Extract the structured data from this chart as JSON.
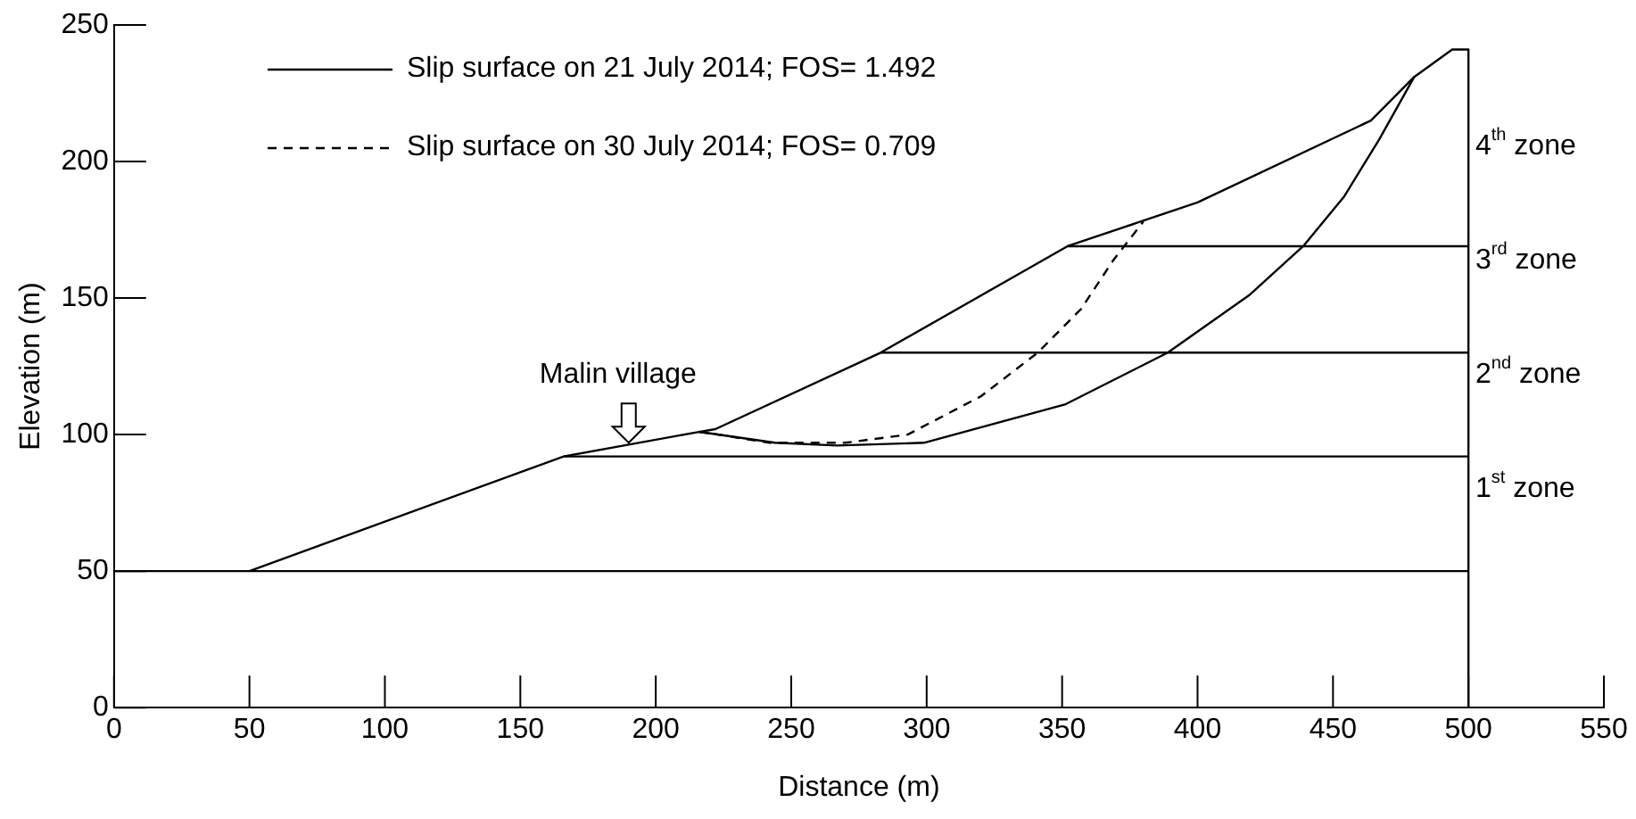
{
  "chart_data": {
    "type": "line",
    "xlabel": "Distance (m)",
    "ylabel": "Elevation (m)",
    "xlim": [
      0,
      550
    ],
    "xticks": [
      0,
      50,
      100,
      150,
      200,
      250,
      300,
      350,
      400,
      450,
      500,
      550
    ],
    "ylim": [
      0,
      250
    ],
    "yticks": [
      0,
      50,
      100,
      150,
      200,
      250
    ],
    "grid": false,
    "legend": "top left",
    "marker": "none",
    "series": [
      {
        "color": "#000000",
        "line_style": "solid",
        "x": [
          50,
          166,
          216,
          222,
          283,
          352,
          400,
          464,
          480,
          494,
          500,
          500
        ],
        "values": [
          50,
          92,
          101,
          102,
          130,
          169,
          185,
          215,
          231,
          241,
          241,
          0
        ]
      },
      {
        "name": "Slip surface on 21 July 2014; FOS= 1.492",
        "color": "#000000",
        "line_style": "solid",
        "x": [
          216,
          244,
          267,
          299,
          351,
          389,
          419,
          439,
          454,
          467,
          480
        ],
        "values": [
          101,
          97,
          96,
          97,
          111,
          130,
          151,
          169,
          187,
          208,
          231
        ]
      },
      {
        "name": "Slip surface on 30 July 2014; FOS= 0.709",
        "color": "#000000",
        "line_style": "dashed",
        "x": [
          216,
          223,
          242,
          270,
          293,
          320,
          341,
          357,
          369,
          380
        ],
        "values": [
          101,
          100,
          97,
          97,
          100,
          114,
          130,
          146,
          164,
          178
        ]
      },
      {
        "color": "#000000",
        "line_style": "solid",
        "x": [
          0,
          500
        ],
        "values": [
          50,
          50
        ]
      },
      {
        "color": "#000000",
        "line_style": "solid",
        "x": [
          166,
          500
        ],
        "values": [
          92,
          92
        ]
      },
      {
        "color": "#000000",
        "line_style": "solid",
        "x": [
          283,
          500
        ],
        "values": [
          130,
          130
        ]
      },
      {
        "color": "#000000",
        "line_style": "solid",
        "x": [
          352,
          500
        ],
        "values": [
          169,
          169
        ]
      }
    ],
    "annotations": [
      {
        "text": "Malin village",
        "x": 190,
        "y": 97
      },
      "4$^{th}$ zone",
      "3$^{rd}$ zone",
      "2$^{nd}$ zone",
      "1$^{st}$ zone"
    ]
  }
}
